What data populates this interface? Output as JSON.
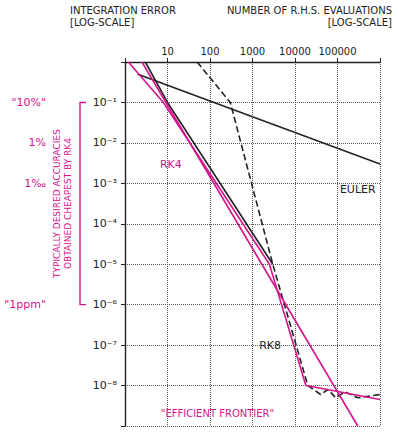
{
  "chart_data": {
    "type": "line",
    "log": true,
    "grid": true,
    "xlabel": "NUMBER OF R.H.S. EVALUATIONS [LOG-SCALE]",
    "ylabel": "INTEGRATION ERROR [LOG-SCALE]",
    "xlim": [
      1,
      1000000
    ],
    "ylim": [
      1e-09,
      1
    ],
    "xticks": [
      10,
      100,
      1000,
      10000,
      100000
    ],
    "yticks": [
      {
        "value": 0.1,
        "label": "10⁻¹"
      },
      {
        "value": 0.01,
        "label": "10⁻²"
      },
      {
        "value": 0.001,
        "label": "10⁻³"
      },
      {
        "value": 0.0001,
        "label": "10⁻⁴"
      },
      {
        "value": 1e-05,
        "label": "10⁻⁵"
      },
      {
        "value": 1e-06,
        "label": "10⁻⁶"
      },
      {
        "value": 1e-07,
        "label": "10⁻⁷"
      },
      {
        "value": 1e-08,
        "label": "10⁻⁸"
      }
    ],
    "series": [
      {
        "color": "#222222",
        "line_style": "solid",
        "marker": "none",
        "x": [
          2,
          1000000
        ],
        "values": [
          0.5,
          0.003
        ]
      },
      {
        "color": "#222222",
        "line_style": "solid",
        "marker": "none",
        "x": [
          3,
          10,
          3000
        ],
        "values": [
          1,
          0.1,
          1e-05
        ]
      },
      {
        "color": "#222222",
        "line_style": "dashed",
        "marker": "none",
        "x": [
          50,
          300,
          3000,
          20000,
          40000,
          60000,
          90000,
          150000,
          300000,
          1000000
        ],
        "values": [
          1,
          0.1,
          1e-05,
          1e-08,
          6e-09,
          8e-09,
          5e-09,
          7e-09,
          5e-09,
          6e-09
        ]
      },
      {
        "color": "#d4148c",
        "line_style": "solid",
        "marker": "none",
        "x": [
          1.2,
          8,
          2500,
          18000,
          1000000
        ],
        "values": [
          1,
          0.1,
          1e-05,
          1e-08,
          4.5e-09
        ]
      },
      {
        "color": "#d4148c",
        "line_style": "solid",
        "marker": "none",
        "x": [
          2.5,
          300000
        ],
        "values": [
          1,
          1e-09
        ]
      }
    ],
    "annotations": [
      {
        "text": "EULER",
        "x": 300000,
        "y": 0.0007,
        "color": "#222222"
      },
      {
        "text": "RK4",
        "x": 12,
        "y": 0.003,
        "color": "#d4148c"
      },
      {
        "text": "RK8",
        "x": 2600,
        "y": 1e-07,
        "color": "#222222"
      },
      {
        "text": "\"EFFICIENT FRONTIER\"",
        "x": 150,
        "y": 2e-09,
        "color": "#d4148c"
      }
    ],
    "accuracy_labels": [
      {
        "text": "\"10%\"",
        "y": 0.1
      },
      {
        "text": "1%",
        "y": 0.01
      },
      {
        "text": "1‰",
        "y": 0.001
      },
      {
        "text": "\"1ppm\"",
        "y": 1e-06
      }
    ],
    "accuracy_color": "#d4148c",
    "bracket": {
      "text": "TYPICALLY DESIRED ACCURACIES OBTAINED CHEAPEST BY RK4",
      "from": 0.1,
      "to": 1e-06
    }
  }
}
